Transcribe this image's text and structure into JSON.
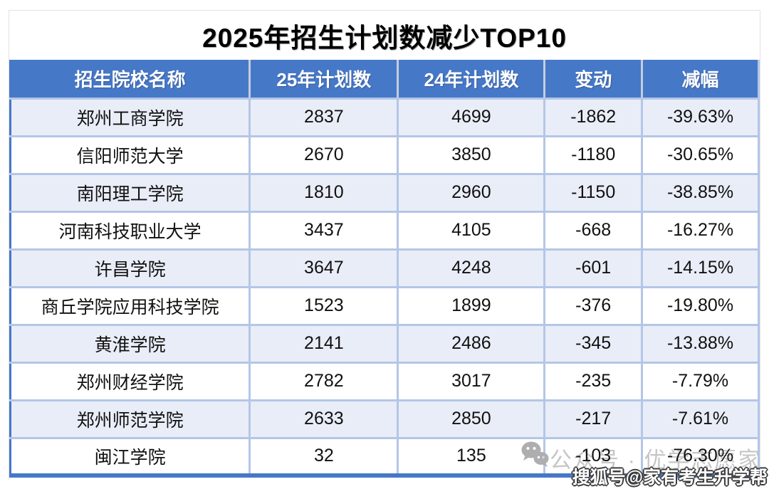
{
  "title": "2025年招生计划数减少TOP10",
  "table": {
    "headers": [
      "招生院校名称",
      "25年计划数",
      "24年计划数",
      "变动",
      "减幅"
    ],
    "rows": [
      [
        "郑州工商学院",
        "2837",
        "4699",
        "-1862",
        "-39.63%"
      ],
      [
        "信阳师范大学",
        "2670",
        "3850",
        "-1180",
        "-30.65%"
      ],
      [
        "南阳理工学院",
        "1810",
        "2960",
        "-1150",
        "-38.85%"
      ],
      [
        "河南科技职业大学",
        "3437",
        "4105",
        "-668",
        "-16.27%"
      ],
      [
        "许昌学院",
        "3647",
        "4248",
        "-601",
        "-14.15%"
      ],
      [
        "商丘学院应用科技学院",
        "1523",
        "1899",
        "-376",
        "-19.80%"
      ],
      [
        "黄淮学院",
        "2141",
        "2486",
        "-345",
        "-13.88%"
      ],
      [
        "郑州财经学院",
        "2782",
        "3017",
        "-235",
        "-7.79%"
      ],
      [
        "郑州师范学院",
        "2633",
        "2850",
        "-217",
        "-7.61%"
      ],
      [
        "闽江学院",
        "32",
        "135",
        "-103",
        "-76.30%"
      ]
    ]
  },
  "chart_data": {
    "type": "table",
    "title": "2025年招生计划数减少TOP10",
    "columns": [
      "招生院校名称",
      "25年计划数",
      "24年计划数",
      "变动",
      "减幅"
    ],
    "rows": [
      {
        "school": "郑州工商学院",
        "plan_2025": 2837,
        "plan_2024": 4699,
        "change": -1862,
        "drop_pct": "-39.63%"
      },
      {
        "school": "信阳师范大学",
        "plan_2025": 2670,
        "plan_2024": 3850,
        "change": -1180,
        "drop_pct": "-30.65%"
      },
      {
        "school": "南阳理工学院",
        "plan_2025": 1810,
        "plan_2024": 2960,
        "change": -1150,
        "drop_pct": "-38.85%"
      },
      {
        "school": "河南科技职业大学",
        "plan_2025": 3437,
        "plan_2024": 4105,
        "change": -668,
        "drop_pct": "-16.27%"
      },
      {
        "school": "许昌学院",
        "plan_2025": 3647,
        "plan_2024": 4248,
        "change": -601,
        "drop_pct": "-14.15%"
      },
      {
        "school": "商丘学院应用科技学院",
        "plan_2025": 1523,
        "plan_2024": 1899,
        "change": -376,
        "drop_pct": "-19.80%"
      },
      {
        "school": "黄淮学院",
        "plan_2025": 2141,
        "plan_2024": 2486,
        "change": -345,
        "drop_pct": "-13.88%"
      },
      {
        "school": "郑州财经学院",
        "plan_2025": 2782,
        "plan_2024": 3017,
        "change": -235,
        "drop_pct": "-7.79%"
      },
      {
        "school": "郑州师范学院",
        "plan_2025": 2633,
        "plan_2024": 2850,
        "change": -217,
        "drop_pct": "-7.61%"
      },
      {
        "school": "闽江学院",
        "plan_2025": 32,
        "plan_2024": 135,
        "change": -103,
        "drop_pct": "-76.30%"
      }
    ]
  },
  "watermarks": {
    "wechat_icon": "wechat-bubbles-icon",
    "wechat_label": "公众号 · 优学志愿家",
    "sohu_label": "搜狐号@家有考生升学帮"
  },
  "colors": {
    "header_bg": "#4678C8",
    "row_alt_bg": "#E9EDF7",
    "grid_border": "#B4C6E7",
    "outer_border": "#4678C8",
    "watermark_gray": "#C6C6C6"
  }
}
